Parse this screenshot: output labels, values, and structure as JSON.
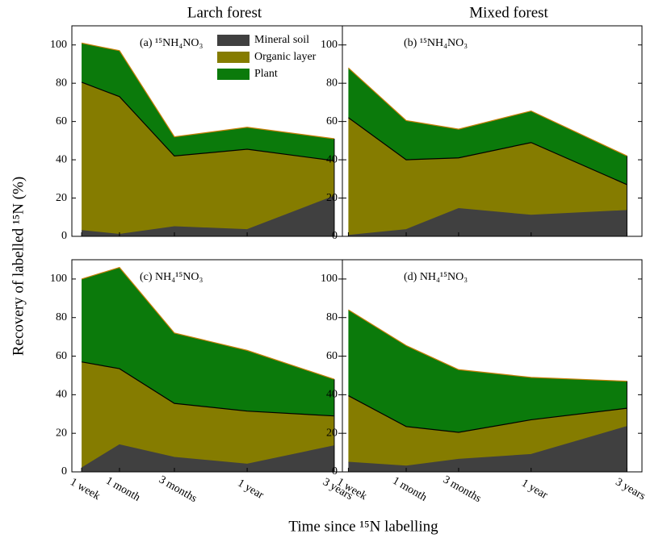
{
  "column_titles": [
    "Larch forest",
    "Mixed forest"
  ],
  "ylabel": "Recovery of labelled ¹⁵N (%)",
  "xlabel": "Time since ¹⁵N labelling",
  "chart_data": [
    {
      "type": "stacked-area",
      "title": "(a) ¹⁵NH₄NO₃",
      "ylim": [
        0,
        110
      ],
      "yticks": [
        0,
        20,
        40,
        60,
        80,
        100
      ],
      "legend": "top-right",
      "series": [
        {
          "name": "Mineral soil",
          "color": "#404040",
          "edge_color": "#404040",
          "values": [
            3,
            1,
            5,
            3.5,
            21
          ]
        },
        {
          "name": "Organic layer",
          "color": "#857c00",
          "edge_color": "#000000",
          "values": [
            77.5,
            72,
            37,
            42,
            18.5
          ]
        },
        {
          "name": "Plant",
          "color": "#0b7a0b",
          "edge_color": "#c8800a",
          "values": [
            20.5,
            24,
            10,
            11.5,
            11.5
          ]
        }
      ]
    },
    {
      "type": "stacked-area",
      "title": "(b) ¹⁵NH₄NO₃",
      "ylim": [
        0,
        110
      ],
      "yticks": [
        0,
        20,
        40,
        60,
        80,
        100
      ],
      "series": [
        {
          "color": "#404040",
          "edge_color": "#404040",
          "values": [
            0.5,
            3.5,
            14.5,
            11,
            13.5
          ]
        },
        {
          "color": "#857c00",
          "edge_color": "#000000",
          "values": [
            61.5,
            36.5,
            26.5,
            38,
            13.5
          ]
        },
        {
          "color": "#0b7a0b",
          "edge_color": "#c8800a",
          "values": [
            26,
            20.5,
            15,
            16.5,
            15
          ]
        }
      ]
    },
    {
      "type": "stacked-area",
      "title": "(c) NH₄¹⁵NO₃",
      "ylim": [
        0,
        110
      ],
      "yticks": [
        0,
        20,
        40,
        60,
        80,
        100
      ],
      "categories": [
        "1 week",
        "1 month",
        "3 months",
        "1 year",
        "3 years"
      ],
      "series": [
        {
          "color": "#404040",
          "edge_color": "#404040",
          "values": [
            2,
            14,
            7.5,
            4,
            13.5
          ]
        },
        {
          "color": "#857c00",
          "edge_color": "#000000",
          "values": [
            55,
            39.5,
            28,
            27.5,
            15.5
          ]
        },
        {
          "color": "#0b7a0b",
          "edge_color": "#c8800a",
          "values": [
            43,
            52.5,
            36.5,
            31.5,
            19
          ]
        }
      ]
    },
    {
      "type": "stacked-area",
      "title": "(d) NH₄¹⁵NO₃",
      "ylim": [
        0,
        110
      ],
      "yticks": [
        0,
        20,
        40,
        60,
        80,
        100
      ],
      "categories": [
        "1 week",
        "1 month",
        "3 months",
        "1 year",
        "3 years"
      ],
      "series": [
        {
          "color": "#404040",
          "edge_color": "#404040",
          "values": [
            5,
            3,
            6.5,
            9,
            23.5
          ]
        },
        {
          "color": "#857c00",
          "edge_color": "#000000",
          "values": [
            34.5,
            20.5,
            14,
            18,
            9.5
          ]
        },
        {
          "color": "#0b7a0b",
          "edge_color": "#c8800a",
          "values": [
            44.5,
            42,
            32.5,
            22,
            14
          ]
        }
      ]
    }
  ]
}
